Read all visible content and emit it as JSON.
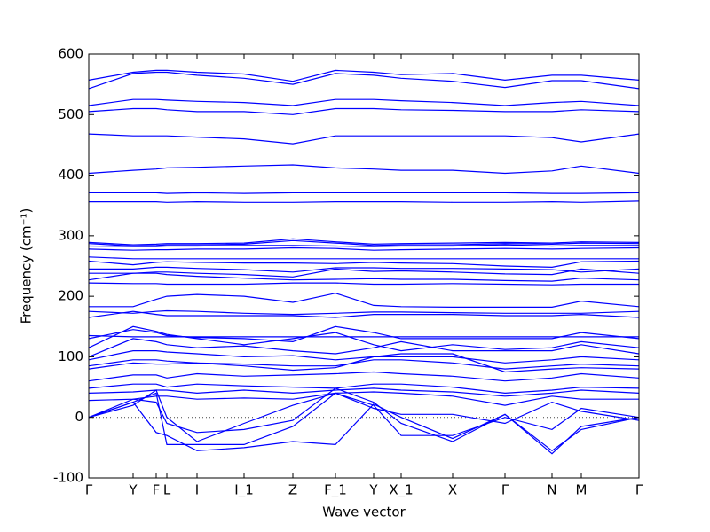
{
  "chart_data": {
    "type": "line",
    "xlabel": "Wave vector",
    "ylabel": "Frequency (cm⁻¹)",
    "color": "#0000ff",
    "hline": 0,
    "x": [
      0,
      0.5,
      0.76,
      0.88,
      1.22,
      1.75,
      2.3,
      2.78,
      3.21,
      3.52,
      4.1,
      4.69,
      5.22,
      5.55,
      6.2
    ],
    "xlim": [
      0,
      6.2
    ],
    "xticks": [
      {
        "value": 0,
        "label": "Γ"
      },
      {
        "value": 0.5,
        "label": "Y"
      },
      {
        "value": 0.76,
        "label": "F"
      },
      {
        "value": 0.88,
        "label": "L"
      },
      {
        "value": 1.22,
        "label": "I"
      },
      {
        "value": 1.75,
        "label": "I_1"
      },
      {
        "value": 2.3,
        "label": "Z"
      },
      {
        "value": 2.78,
        "label": "F_1"
      },
      {
        "value": 3.21,
        "label": "Y"
      },
      {
        "value": 3.52,
        "label": "X_1"
      },
      {
        "value": 4.1,
        "label": "X"
      },
      {
        "value": 4.69,
        "label": "Γ"
      },
      {
        "value": 5.22,
        "label": "N"
      },
      {
        "value": 5.55,
        "label": "M"
      },
      {
        "value": 6.2,
        "label": "Γ"
      }
    ],
    "ylim": [
      -100,
      600
    ],
    "yticks": [
      -100,
      0,
      100,
      200,
      300,
      400,
      500,
      600
    ],
    "series": [
      {
        "values": [
          557,
          570,
          573,
          573,
          570,
          567,
          555,
          573,
          570,
          566,
          568,
          557,
          565,
          565,
          557
        ]
      },
      {
        "values": [
          543,
          568,
          570,
          570,
          565,
          560,
          550,
          568,
          565,
          560,
          555,
          545,
          556,
          556,
          543
        ]
      },
      {
        "values": [
          515,
          525,
          525,
          524,
          522,
          520,
          515,
          525,
          525,
          523,
          520,
          515,
          520,
          522,
          515
        ]
      },
      {
        "values": [
          505,
          510,
          510,
          508,
          505,
          505,
          500,
          510,
          510,
          508,
          507,
          505,
          505,
          508,
          505
        ]
      },
      {
        "values": [
          468,
          465,
          465,
          465,
          463,
          460,
          452,
          465,
          465,
          465,
          465,
          465,
          462,
          455,
          468
        ]
      },
      {
        "values": [
          403,
          408,
          410,
          412,
          413,
          415,
          417,
          412,
          410,
          408,
          408,
          403,
          407,
          415,
          403
        ]
      },
      {
        "values": [
          371,
          371,
          371,
          370,
          371,
          370,
          371,
          371,
          371,
          371,
          371,
          371,
          370,
          370,
          371
        ]
      },
      {
        "values": [
          356,
          356,
          356,
          355,
          356,
          355,
          355,
          356,
          356,
          356,
          355,
          355,
          356,
          355,
          357
        ]
      },
      {
        "values": [
          289,
          285,
          286,
          287,
          287,
          288,
          295,
          290,
          286,
          287,
          288,
          289,
          288,
          290,
          289
        ]
      },
      {
        "values": [
          287,
          283,
          284,
          285,
          285,
          286,
          292,
          288,
          284,
          285,
          285,
          287,
          286,
          288,
          287
        ]
      },
      {
        "values": [
          283,
          282,
          282,
          283,
          283,
          284,
          284,
          283,
          282,
          283,
          283,
          285,
          283,
          284,
          284
        ]
      },
      {
        "values": [
          278,
          276,
          277,
          277,
          278,
          278,
          280,
          279,
          276,
          277,
          278,
          279,
          278,
          279,
          280
        ]
      },
      {
        "values": [
          265,
          262,
          262,
          262,
          262,
          262,
          262,
          262,
          262,
          262,
          262,
          262,
          262,
          262,
          262
        ]
      },
      {
        "values": [
          258,
          252,
          256,
          257,
          256,
          255,
          255,
          254,
          256,
          255,
          254,
          250,
          248,
          257,
          258
        ]
      },
      {
        "values": [
          245,
          245,
          248,
          248,
          246,
          244,
          240,
          247,
          247,
          246,
          246,
          245,
          244,
          240,
          245
        ]
      },
      {
        "values": [
          238,
          238,
          240,
          240,
          238,
          236,
          232,
          245,
          241,
          242,
          240,
          237,
          236,
          245,
          238
        ]
      },
      {
        "values": [
          227,
          238,
          238,
          236,
          233,
          230,
          227,
          228,
          229,
          228,
          228,
          226,
          225,
          230,
          227
        ]
      },
      {
        "values": [
          222,
          221,
          221,
          220,
          220,
          220,
          222,
          222,
          220,
          220,
          221,
          220,
          219,
          220,
          220
        ]
      },
      {
        "values": [
          183,
          183,
          195,
          200,
          203,
          200,
          190,
          205,
          185,
          183,
          182,
          182,
          182,
          192,
          183
        ]
      },
      {
        "values": [
          175,
          172,
          175,
          176,
          175,
          172,
          170,
          172,
          174,
          174,
          173,
          172,
          172,
          172,
          175
        ]
      },
      {
        "values": [
          165,
          175,
          170,
          168,
          168,
          168,
          168,
          165,
          170,
          170,
          170,
          168,
          168,
          170,
          165
        ]
      },
      {
        "values": [
          135,
          133,
          133,
          133,
          133,
          133,
          133,
          133,
          133,
          133,
          133,
          133,
          133,
          133,
          133
        ]
      },
      {
        "values": [
          130,
          145,
          140,
          135,
          132,
          130,
          125,
          150,
          140,
          130,
          130,
          130,
          130,
          140,
          130
        ]
      },
      {
        "values": [
          115,
          150,
          142,
          137,
          130,
          120,
          130,
          140,
          120,
          110,
          120,
          112,
          115,
          125,
          115
        ]
      },
      {
        "values": [
          100,
          130,
          125,
          120,
          115,
          118,
          110,
          105,
          115,
          125,
          110,
          110,
          110,
          120,
          105
        ]
      },
      {
        "values": [
          95,
          110,
          110,
          108,
          105,
          100,
          102,
          95,
          100,
          100,
          100,
          90,
          95,
          100,
          95
        ]
      },
      {
        "values": [
          85,
          95,
          95,
          93,
          90,
          88,
          85,
          85,
          95,
          95,
          90,
          80,
          85,
          88,
          85
        ]
      },
      {
        "values": [
          80,
          90,
          88,
          88,
          90,
          85,
          78,
          82,
          100,
          105,
          105,
          75,
          80,
          82,
          80
        ]
      },
      {
        "values": [
          60,
          70,
          70,
          65,
          72,
          68,
          70,
          72,
          75,
          72,
          68,
          60,
          65,
          72,
          65
        ]
      },
      {
        "values": [
          48,
          55,
          55,
          50,
          55,
          52,
          50,
          48,
          55,
          55,
          50,
          40,
          45,
          50,
          48
        ]
      },
      {
        "values": [
          40,
          42,
          45,
          45,
          40,
          45,
          40,
          45,
          48,
          45,
          42,
          35,
          40,
          45,
          40
        ]
      },
      {
        "values": [
          28,
          30,
          35,
          35,
          30,
          32,
          30,
          40,
          42,
          40,
          35,
          20,
          35,
          30,
          30
        ]
      },
      {
        "values": [
          0,
          30,
          25,
          -10,
          -25,
          -20,
          -5,
          48,
          25,
          -10,
          -40,
          5,
          -60,
          -15,
          0
        ]
      },
      {
        "values": [
          0,
          25,
          -25,
          -30,
          -55,
          -50,
          -40,
          -45,
          22,
          0,
          -35,
          5,
          -55,
          -20,
          0
        ]
      },
      {
        "values": [
          0,
          25,
          40,
          -45,
          -45,
          -45,
          -15,
          40,
          20,
          -30,
          -30,
          0,
          -20,
          15,
          0
        ]
      },
      {
        "values": [
          0,
          20,
          45,
          0,
          -40,
          -10,
          20,
          40,
          15,
          5,
          5,
          -10,
          25,
          10,
          -5
        ]
      }
    ]
  }
}
